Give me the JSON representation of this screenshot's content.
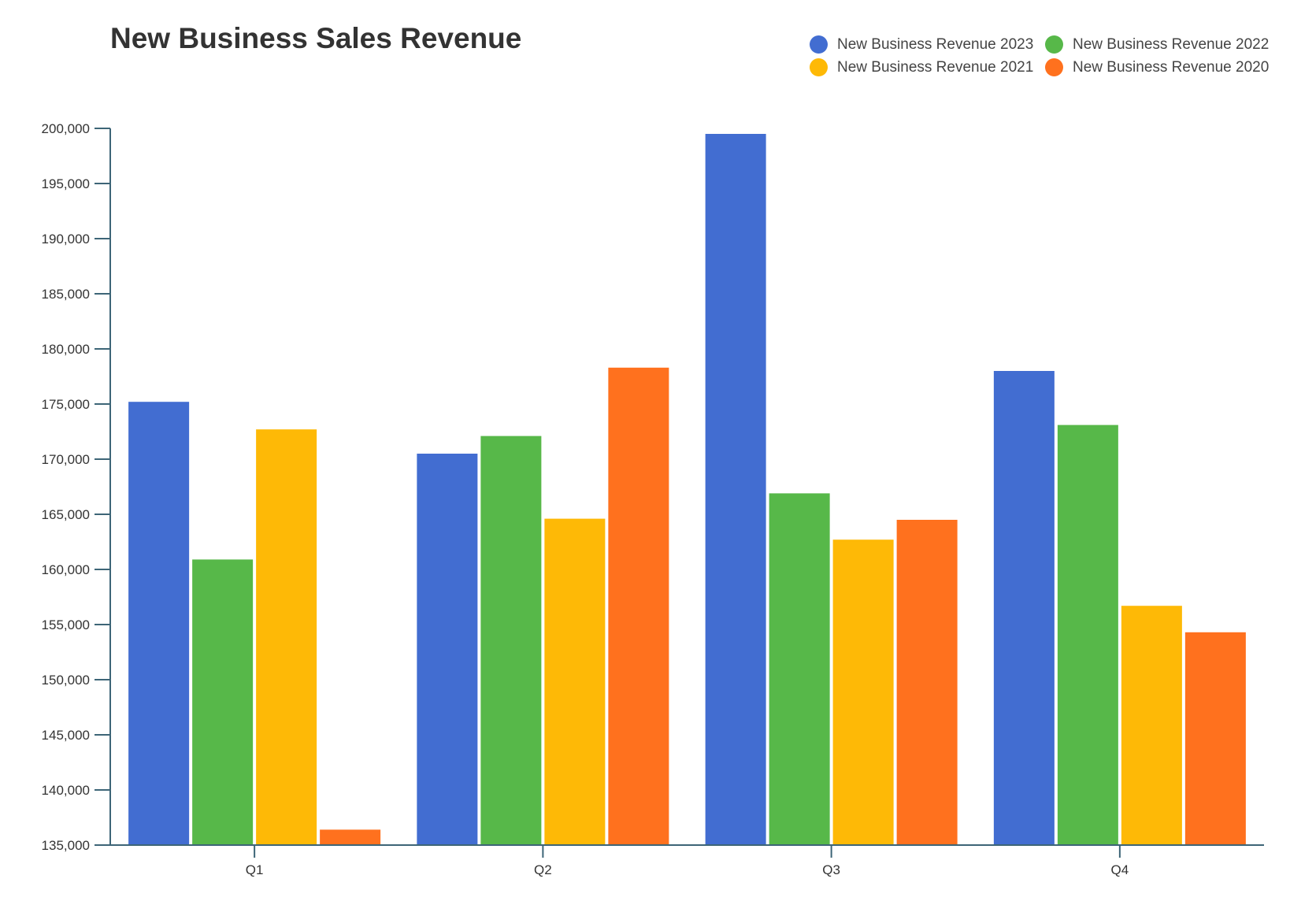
{
  "chart_data": {
    "type": "bar",
    "title": "New Business Sales Revenue",
    "xlabel": "",
    "ylabel": "",
    "categories": [
      "Q1",
      "Q2",
      "Q3",
      "Q4"
    ],
    "ylim": [
      135000,
      200000
    ],
    "yticks": [
      135000,
      140000,
      145000,
      150000,
      155000,
      160000,
      165000,
      170000,
      175000,
      180000,
      185000,
      190000,
      195000,
      200000
    ],
    "ytick_labels": [
      "135,000",
      "140,000",
      "145,000",
      "150,000",
      "155,000",
      "160,000",
      "165,000",
      "170,000",
      "175,000",
      "180,000",
      "185,000",
      "190,000",
      "195,000",
      "200,000"
    ],
    "grid": false,
    "legend_position": "top-right",
    "series": [
      {
        "name": "New Business Revenue 2023",
        "color": "#426dd1",
        "values": [
          175200,
          170500,
          199500,
          178000
        ]
      },
      {
        "name": "New Business Revenue 2022",
        "color": "#57b849",
        "values": [
          160900,
          172100,
          166900,
          173100
        ]
      },
      {
        "name": "New Business Revenue 2021",
        "color": "#feb906",
        "values": [
          172700,
          164600,
          162700,
          156700
        ]
      },
      {
        "name": "New Business Revenue 2020",
        "color": "#ff711e",
        "values": [
          136400,
          178300,
          164500,
          154300
        ]
      }
    ]
  }
}
